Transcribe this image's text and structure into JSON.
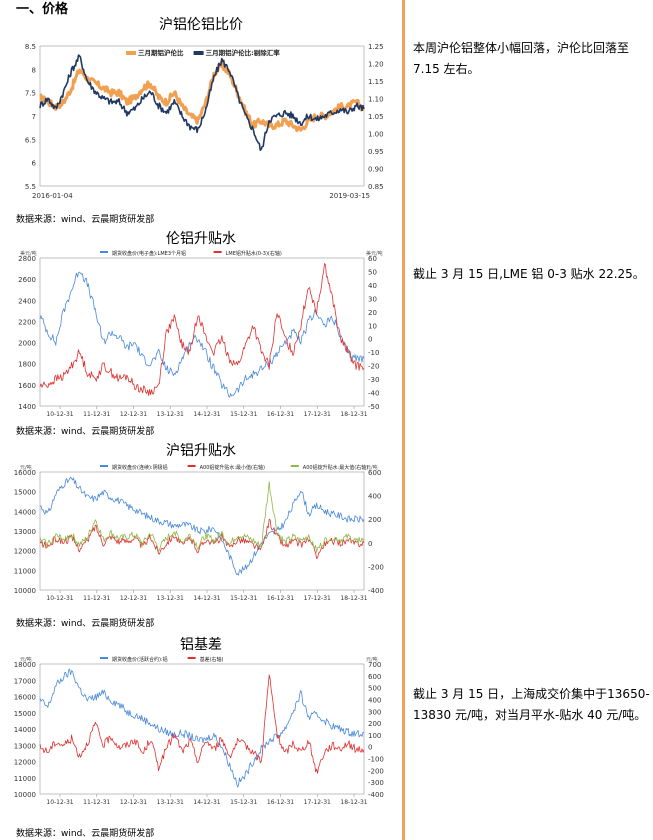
{
  "section_heading": "一、价格",
  "colors": {
    "divider": "#f0a25a",
    "orange_series": "#f0a050",
    "navy_series": "#1f3864",
    "blue_series": "#4a8ad8",
    "red_series": "#e03030",
    "green_series": "#8fb648"
  },
  "charts": [
    {
      "id": "ratio",
      "title": "沪铝伦铝比价",
      "source": "数据来源：wind、云晨期货研发部",
      "note": "本周沪伦铝整体小幅回落，沪伦比回落至7.15 左右。",
      "chart_data": {
        "type": "line",
        "legend": [
          "三月期铝沪伦比",
          "三月期铝沪伦比:剔除汇率"
        ],
        "x_start": "2016-01-04",
        "x_end": "2019-03-15",
        "y_left_ticks": [
          "8.5",
          "8",
          "7.5",
          "7",
          "6.5",
          "6",
          "5.5"
        ],
        "y_right_ticks": [
          "1.25",
          "1.20",
          "1.15",
          "1.10",
          "1.05",
          "1.00",
          "0.95",
          "0.90",
          "0.85"
        ],
        "ylim_left": [
          5.5,
          8.5
        ],
        "series": [
          {
            "name": "三月期铝沪伦比",
            "axis": "left",
            "values": [
              7.4,
              7.3,
              7.2,
              7.3,
              7.6,
              8.0,
              7.8,
              7.7,
              7.6,
              7.5,
              7.5,
              7.3,
              7.4,
              7.6,
              7.7,
              7.4,
              7.3,
              7.5,
              7.2,
              7.0,
              6.9,
              7.3,
              7.9,
              8.1,
              7.9,
              7.5,
              7.1,
              6.8,
              6.9,
              6.8,
              6.8,
              6.9,
              6.8,
              6.7,
              6.9,
              7.0,
              7.0,
              7.1,
              7.2,
              7.2,
              7.3,
              7.15
            ]
          },
          {
            "name": "三月期铝沪伦比:剔除汇率",
            "axis": "right",
            "values": [
              1.08,
              1.1,
              1.07,
              1.12,
              1.18,
              1.22,
              1.15,
              1.12,
              1.1,
              1.09,
              1.09,
              1.06,
              1.07,
              1.1,
              1.12,
              1.08,
              1.06,
              1.09,
              1.05,
              1.02,
              1.01,
              1.07,
              1.16,
              1.21,
              1.18,
              1.11,
              1.05,
              1.01,
              0.95,
              1.04,
              1.05,
              1.06,
              1.05,
              1.03,
              1.05,
              1.04,
              1.05,
              1.06,
              1.07,
              1.06,
              1.08,
              1.07
            ]
          }
        ]
      }
    },
    {
      "id": "lme",
      "title": "伦铝升贴水",
      "source": "数据来源：wind、云晨期货研发部",
      "note": "截止 3 月 15 日,LME 铝 0-3 贴水 22.25。",
      "chart_data": {
        "type": "line",
        "legend": [
          "期货收盘价(电子盘):LME3个月铝",
          "LME铝升贴水(0-3)(右轴)"
        ],
        "left_unit": "美元/吨",
        "right_unit": "美元/吨",
        "x_ticks": [
          "10-12-31",
          "11-12-31",
          "12-12-31",
          "13-12-31",
          "14-12-31",
          "15-12-31",
          "16-12-31",
          "17-12-31",
          "18-12-31"
        ],
        "y_left_ticks": [
          "2800",
          "2600",
          "2400",
          "2200",
          "2000",
          "1800",
          "1600",
          "1400"
        ],
        "y_right_ticks": [
          "60",
          "50",
          "40",
          "30",
          "20",
          "10",
          "0",
          "-10",
          "-20",
          "-30",
          "-40",
          "-50"
        ],
        "ylim_left": [
          1400,
          2800
        ],
        "ylim_right": [
          -50,
          60
        ],
        "series": [
          {
            "name": "期货收盘价(电子盘):LME3个月铝",
            "axis": "left",
            "values": [
              2250,
              2100,
              2000,
              2300,
              2500,
              2700,
              2550,
              2300,
              2000,
              2100,
              2050,
              1950,
              2000,
              1850,
              1800,
              1900,
              1750,
              1700,
              1850,
              2000,
              2050,
              1900,
              1750,
              1600,
              1500,
              1550,
              1650,
              1700,
              1750,
              1800,
              1900,
              2000,
              2100,
              2000,
              2200,
              2300,
              2150,
              2250,
              2050,
              1900,
              1850,
              1850
            ]
          },
          {
            "name": "LME铝升贴水(0-3)(右轴)",
            "axis": "right",
            "values": [
              -35,
              -34,
              -30,
              -28,
              -20,
              -10,
              -25,
              -30,
              -20,
              -25,
              -30,
              -28,
              -35,
              -38,
              -40,
              -35,
              5,
              15,
              -5,
              -10,
              20,
              0,
              -10,
              0,
              -15,
              -20,
              -5,
              10,
              -10,
              -20,
              20,
              0,
              -10,
              10,
              40,
              20,
              55,
              30,
              0,
              -10,
              -20,
              -22
            ]
          }
        ]
      }
    },
    {
      "id": "shfe",
      "title": "沪铝升贴水",
      "source": "数据来源：wind、云晨期货研发部",
      "note": "",
      "chart_data": {
        "type": "line",
        "legend": [
          "期货收盘价(连续):阴极铝",
          "A00铝锭升贴水:最小值(右轴)",
          "A00铝锭升贴水:最大值(右轴)"
        ],
        "left_unit": "元/吨",
        "right_unit": "元/吨",
        "x_ticks": [
          "10-12-31",
          "11-12-31",
          "12-12-31",
          "13-12-31",
          "14-12-31",
          "15-12-31",
          "16-12-31",
          "17-12-31",
          "18-12-31"
        ],
        "y_left_ticks": [
          "16000",
          "15000",
          "14000",
          "13000",
          "12000",
          "11000",
          "10000"
        ],
        "y_right_ticks": [
          "600",
          "400",
          "200",
          "0",
          "-200",
          "-400"
        ],
        "ylim_left": [
          9500,
          16500
        ],
        "ylim_right": [
          -500,
          700
        ],
        "series": [
          {
            "name": "期货收盘价(连续):阴极铝",
            "axis": "left",
            "values": [
              14500,
              14000,
              15200,
              15800,
              16100,
              15500,
              15000,
              14900,
              15300,
              15000,
              14800,
              14500,
              14300,
              14000,
              13800,
              13600,
              13500,
              13300,
              13400,
              13300,
              13000,
              13000,
              13200,
              12500,
              11500,
              10500,
              10800,
              11500,
              12300,
              12800,
              13000,
              13500,
              14500,
              15500,
              14000,
              14500,
              14200,
              14000,
              13900,
              13700,
              13700,
              13700
            ]
          },
          {
            "name": "A00铝锭升贴水:最小值(右轴)",
            "axis": "right",
            "values": [
              -20,
              -60,
              20,
              -10,
              30,
              -80,
              0,
              150,
              -20,
              50,
              -10,
              0,
              30,
              -60,
              40,
              -120,
              -20,
              60,
              -50,
              30,
              -100,
              20,
              -30,
              40,
              -80,
              20,
              0,
              -40,
              -100,
              200,
              50,
              -60,
              0,
              -40,
              20,
              -150,
              -40,
              0,
              -20,
              0,
              -30,
              -20
            ]
          },
          {
            "name": "A00铝锭升贴水:最大值(右轴)",
            "axis": "right",
            "values": [
              10,
              -30,
              50,
              20,
              60,
              -40,
              30,
              220,
              10,
              80,
              20,
              40,
              60,
              -30,
              80,
              -80,
              20,
              100,
              -10,
              60,
              -60,
              60,
              0,
              80,
              -40,
              60,
              40,
              0,
              -60,
              580,
              90,
              -20,
              40,
              0,
              60,
              -100,
              0,
              40,
              10,
              40,
              0,
              20
            ]
          }
        ]
      }
    },
    {
      "id": "basis",
      "title": "铝基差",
      "source": "数据来源：wind、云晨期货研发部",
      "note": "截止 3 月 15 日，上海成交价集中于13650-13830 元/吨，对当月平水-贴水 40 元/吨。",
      "chart_data": {
        "type": "line",
        "legend": [
          "期货收盘价(活跃合约):铝",
          "基差(右轴)"
        ],
        "left_unit": "元/吨",
        "right_unit": "元/吨",
        "x_ticks": [
          "10-12-31",
          "11-12-31",
          "12-12-31",
          "13-12-31",
          "14-12-31",
          "15-12-31",
          "16-12-31",
          "17-12-31",
          "18-12-31"
        ],
        "y_left_ticks": [
          "18000",
          "17000",
          "16000",
          "15000",
          "14000",
          "13000",
          "12000",
          "11000",
          "10000"
        ],
        "y_right_ticks": [
          "700",
          "600",
          "500",
          "400",
          "300",
          "200",
          "100",
          "0",
          "-100",
          "-200",
          "-300",
          "-400"
        ],
        "ylim_left": [
          9500,
          18500
        ],
        "ylim_right": [
          -450,
          750
        ],
        "series": [
          {
            "name": "期货收盘价(活跃合约):铝",
            "axis": "left",
            "values": [
              16000,
              15500,
              17000,
              17600,
              18000,
              16800,
              16000,
              16200,
              16500,
              16000,
              15700,
              15200,
              15000,
              14700,
              14400,
              14000,
              13800,
              13600,
              13700,
              13500,
              13200,
              13300,
              13600,
              12800,
              11500,
              10200,
              10800,
              11800,
              12600,
              13200,
              13500,
              14000,
              15200,
              16400,
              14800,
              15000,
              14600,
              14200,
              14000,
              13800,
              13700,
              13740
            ]
          },
          {
            "name": "基差(右轴)",
            "axis": "right",
            "values": [
              -20,
              -60,
              30,
              0,
              60,
              -100,
              20,
              200,
              0,
              80,
              -20,
              0,
              50,
              -80,
              60,
              -200,
              -30,
              100,
              -60,
              40,
              -150,
              50,
              -40,
              60,
              -100,
              30,
              0,
              -60,
              -150,
              650,
              100,
              -80,
              20,
              -60,
              40,
              -250,
              -60,
              0,
              -30,
              20,
              -40,
              -40
            ]
          }
        ]
      }
    }
  ]
}
